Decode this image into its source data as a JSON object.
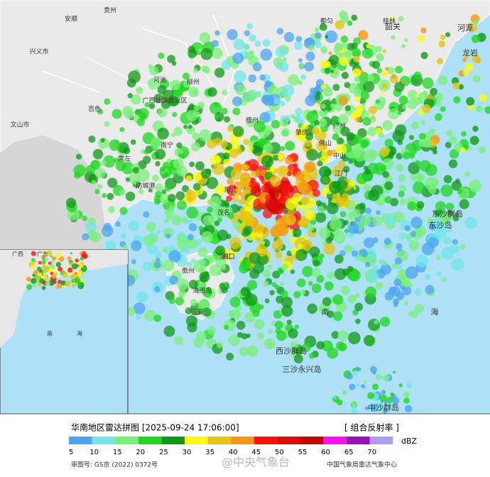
{
  "map": {
    "places": [
      "贵州",
      "安顺",
      "都匀",
      "桂林",
      "兴义市",
      "百色",
      "河池",
      "柳州",
      "广西壮族自治区",
      "梧州",
      "南宁",
      "崇左",
      "防城港",
      "文山市",
      "肇庆",
      "广州",
      "佛山",
      "中山",
      "江门",
      "阳江",
      "茂名",
      "湛江",
      "海口",
      "儋州",
      "海南岛",
      "三亚",
      "东沙群岛",
      "东沙岛",
      "西沙群岛",
      "三沙永兴岛",
      "中沙群岛",
      "南",
      "海",
      "韶关",
      "河源",
      "龙岩"
    ],
    "inset_places": [
      "广西",
      "广东",
      "南",
      "海"
    ]
  },
  "footer": {
    "title": "华南地区雷达拼图 [2025-09-24 17:06:00]",
    "product": "[ 组合反射率 ]",
    "legend": {
      "unit": "dBZ",
      "levels": [
        {
          "value": 5,
          "color": "#4ba4f2"
        },
        {
          "value": 10,
          "color": "#6fe6e8"
        },
        {
          "value": 15,
          "color": "#78f078"
        },
        {
          "value": 20,
          "color": "#1ed81e"
        },
        {
          "value": 25,
          "color": "#0f9a16"
        },
        {
          "value": 30,
          "color": "#fbfb10"
        },
        {
          "value": 35,
          "color": "#e4c410"
        },
        {
          "value": 40,
          "color": "#fb9410"
        },
        {
          "value": 45,
          "color": "#fb1010"
        },
        {
          "value": 50,
          "color": "#dc0c0c"
        },
        {
          "value": 55,
          "color": "#c00808"
        },
        {
          "value": 60,
          "color": "#fb10f4"
        },
        {
          "value": 65,
          "color": "#9a10b8"
        },
        {
          "value": 70,
          "color": "#b09cf0"
        }
      ]
    },
    "review_no": "审图号: GS京 (2022) 0372号",
    "source": "中国气象局雷达气象中心",
    "watermark": "@中央气象台"
  }
}
